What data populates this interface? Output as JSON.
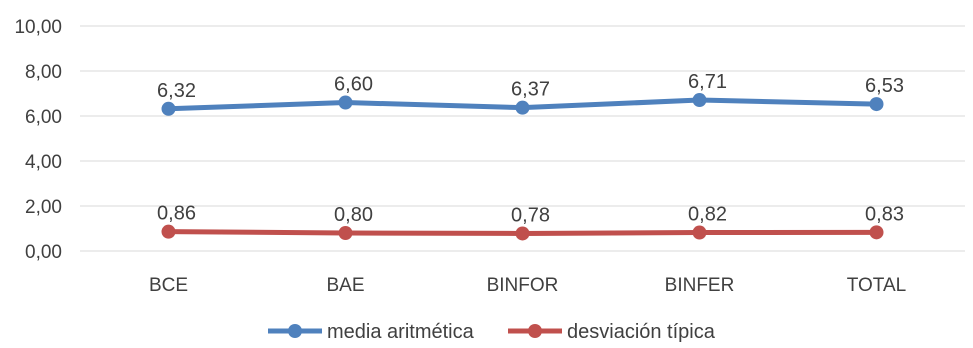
{
  "chart_data": {
    "type": "line",
    "categories": [
      "BCE",
      "BAE",
      "BINFOR",
      "BINFER",
      "TOTAL"
    ],
    "series": [
      {
        "name": "media aritmética",
        "values": [
          6.32,
          6.6,
          6.37,
          6.71,
          6.53
        ],
        "labels": [
          "6,32",
          "6,60",
          "6,37",
          "6,71",
          "6,53"
        ],
        "color": "#4f81bd"
      },
      {
        "name": "desviación típica",
        "values": [
          0.86,
          0.8,
          0.78,
          0.82,
          0.83
        ],
        "labels": [
          "0,86",
          "0,80",
          "0,78",
          "0,82",
          "0,83"
        ],
        "color": "#c0504d"
      }
    ],
    "y_ticks": [
      0,
      2,
      4,
      6,
      8,
      10
    ],
    "y_tick_labels": [
      "0,00",
      "2,00",
      "4,00",
      "6,00",
      "8,00",
      "10,00"
    ],
    "ylim": [
      0,
      10
    ],
    "grid": true,
    "legend_position": "bottom",
    "title": "",
    "xlabel": "",
    "ylabel": ""
  }
}
